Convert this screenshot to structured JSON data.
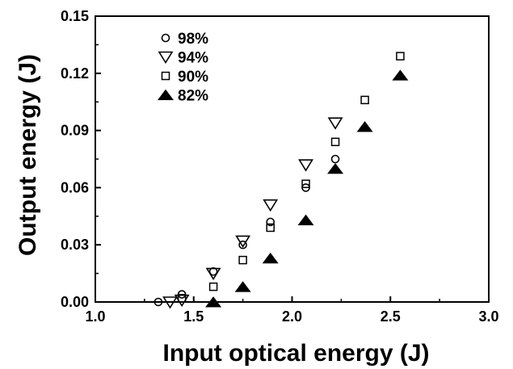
{
  "chart_data": {
    "type": "scatter",
    "title": "",
    "xlabel": "Input optical energy (J)",
    "ylabel": "Output energy (J)",
    "xlim": [
      1.0,
      3.0
    ],
    "ylim": [
      0.0,
      0.15
    ],
    "xticks": [
      "1.0",
      "1.5",
      "2.0",
      "2.5",
      "3.0"
    ],
    "yticks": [
      "0.00",
      "0.03",
      "0.06",
      "0.09",
      "0.12",
      "0.15"
    ],
    "grid": false,
    "legend_position": "top-left",
    "series": [
      {
        "name": "98%",
        "marker": "circle-open",
        "points": [
          [
            1.32,
            0.0
          ],
          [
            1.44,
            0.004
          ],
          [
            1.6,
            0.016
          ],
          [
            1.75,
            0.03
          ],
          [
            1.89,
            0.042
          ],
          [
            2.07,
            0.06
          ],
          [
            2.22,
            0.075
          ]
        ]
      },
      {
        "name": "94%",
        "marker": "triangle-down-open",
        "points": [
          [
            1.38,
            0.0
          ],
          [
            1.44,
            0.001
          ],
          [
            1.6,
            0.015
          ],
          [
            1.75,
            0.032
          ],
          [
            1.89,
            0.051
          ],
          [
            2.07,
            0.072
          ],
          [
            2.22,
            0.094
          ]
        ]
      },
      {
        "name": "90%",
        "marker": "square-open",
        "points": [
          [
            1.44,
            0.002
          ],
          [
            1.6,
            0.008
          ],
          [
            1.75,
            0.022
          ],
          [
            1.89,
            0.039
          ],
          [
            2.07,
            0.062
          ],
          [
            2.22,
            0.084
          ],
          [
            2.37,
            0.106
          ],
          [
            2.55,
            0.129
          ]
        ]
      },
      {
        "name": "82%",
        "marker": "triangle-up-filled",
        "points": [
          [
            1.6,
            0.0
          ],
          [
            1.75,
            0.008
          ],
          [
            1.89,
            0.023
          ],
          [
            2.07,
            0.043
          ],
          [
            2.22,
            0.07
          ],
          [
            2.37,
            0.092
          ],
          [
            2.55,
            0.119
          ]
        ]
      }
    ]
  }
}
